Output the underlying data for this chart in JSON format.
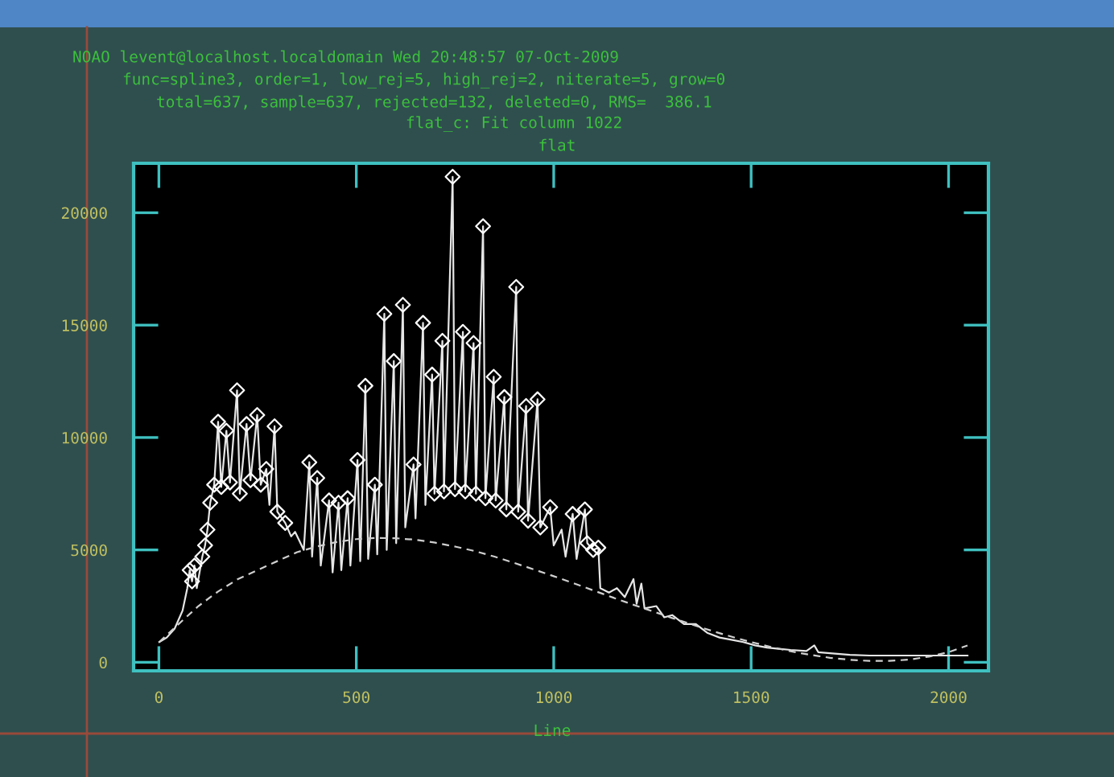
{
  "chart_data": {
    "type": "line",
    "title": "flat",
    "xlabel": "Line",
    "annotations": [
      "NOAO levent@localhost.localdomain Wed 20:48:57 07-Oct-2009",
      "func=spline3, order=1, low_rej=5, high_rej=2, niterate=5, grow=0",
      "total=637, sample=637, rejected=132, deleted=0, RMS=  386.1",
      "flat_c: Fit column 1022"
    ],
    "xlim": [
      -64,
      2101
    ],
    "ylim": [
      -380,
      22200
    ],
    "xticks": [
      0,
      500,
      1000,
      1500,
      2000
    ],
    "yticks": [
      0,
      5000,
      10000,
      15000,
      20000
    ],
    "series": [
      {
        "color": "#e6e6e6",
        "line_style": "solid",
        "marker": "none",
        "x": [
          1,
          20,
          40,
          60,
          72,
          78,
          84,
          90,
          96,
          110,
          117,
          123,
          130,
          140,
          150,
          158,
          171,
          180,
          198,
          205,
          222,
          232,
          249,
          258,
          272,
          280,
          293,
          300,
          320,
          335,
          345,
          367,
          381,
          388,
          401,
          410,
          431,
          440,
          455,
          462,
          478,
          485,
          503,
          510,
          523,
          530,
          547,
          553,
          571,
          577,
          595,
          601,
          618,
          624,
          645,
          650,
          669,
          675,
          692,
          698,
          718,
          722,
          744,
          750,
          770,
          776,
          797,
          803,
          821,
          827,
          848,
          853,
          875,
          880,
          905,
          910,
          930,
          935,
          959,
          966,
          991,
          1000,
          1020,
          1030,
          1048,
          1058,
          1079,
          1085,
          1100,
          1113,
          1118,
          1140,
          1160,
          1180,
          1202,
          1210,
          1222,
          1230,
          1260,
          1280,
          1300,
          1330,
          1360,
          1390,
          1420,
          1450,
          1480,
          1510,
          1540,
          1570,
          1600,
          1640,
          1660,
          1670,
          1700,
          1750,
          1800,
          1850,
          1900,
          1950,
          2000,
          2048
        ],
        "values": [
          900,
          1100,
          1500,
          2300,
          3300,
          4100,
          3600,
          4300,
          3300,
          4700,
          5200,
          5900,
          7100,
          7900,
          10700,
          7800,
          10300,
          8000,
          12100,
          7500,
          10600,
          8100,
          11000,
          7900,
          8600,
          7000,
          10500,
          6700,
          6200,
          5600,
          5800,
          5000,
          8900,
          4700,
          8200,
          4300,
          7200,
          4000,
          7100,
          4100,
          7300,
          4300,
          9000,
          4500,
          12300,
          4600,
          7900,
          4800,
          15500,
          5000,
          13400,
          5300,
          15900,
          6000,
          8800,
          6400,
          15100,
          7000,
          12800,
          7500,
          14300,
          7600,
          21600,
          7700,
          14700,
          7600,
          14200,
          7500,
          19400,
          7300,
          12700,
          7200,
          11800,
          6800,
          16700,
          6700,
          11400,
          6300,
          11700,
          6000,
          6900,
          5200,
          5900,
          4700,
          6600,
          4600,
          6800,
          5300,
          5000,
          5100,
          3300,
          3100,
          3300,
          2900,
          3700,
          2600,
          3500,
          2400,
          2500,
          2000,
          2100,
          1700,
          1700,
          1300,
          1100,
          1000,
          900,
          750,
          650,
          600,
          550,
          500,
          750,
          450,
          400,
          330,
          300,
          300,
          300,
          300,
          300,
          300
        ]
      },
      {
        "color": "#cfcfcf",
        "line_style": "dashed",
        "marker": "none",
        "x": [
          1,
          50,
          100,
          150,
          200,
          250,
          300,
          350,
          400,
          450,
          500,
          550,
          600,
          650,
          700,
          750,
          800,
          850,
          900,
          950,
          1000,
          1050,
          1100,
          1150,
          1200,
          1250,
          1300,
          1350,
          1400,
          1450,
          1500,
          1550,
          1600,
          1650,
          1700,
          1750,
          1800,
          1850,
          1900,
          1950,
          2000,
          2048
        ],
        "values": [
          900,
          1700,
          2500,
          3150,
          3700,
          4100,
          4500,
          4900,
          5150,
          5350,
          5480,
          5530,
          5520,
          5450,
          5320,
          5150,
          4950,
          4700,
          4420,
          4130,
          3830,
          3520,
          3200,
          2880,
          2570,
          2270,
          1970,
          1680,
          1400,
          1140,
          900,
          680,
          490,
          330,
          200,
          110,
          60,
          60,
          120,
          250,
          450,
          750
        ]
      },
      {
        "type": "scatter",
        "color": "#ffffff",
        "marker": "diamond",
        "x": [
          78,
          84,
          90,
          110,
          117,
          123,
          130,
          140,
          150,
          158,
          171,
          180,
          198,
          205,
          222,
          232,
          249,
          258,
          272,
          293,
          300,
          320,
          381,
          401,
          431,
          455,
          478,
          503,
          523,
          547,
          571,
          595,
          618,
          645,
          669,
          692,
          698,
          718,
          722,
          744,
          750,
          770,
          776,
          797,
          803,
          821,
          827,
          848,
          853,
          875,
          880,
          905,
          910,
          930,
          935,
          959,
          966,
          991,
          1048,
          1079,
          1085,
          1100,
          1113
        ],
        "values": [
          4100,
          3600,
          4300,
          4700,
          5200,
          5900,
          7100,
          7900,
          10700,
          7800,
          10300,
          8000,
          12100,
          7500,
          10600,
          8100,
          11000,
          7900,
          8600,
          10500,
          6700,
          6200,
          8900,
          8200,
          7200,
          7100,
          7300,
          9000,
          12300,
          7900,
          15500,
          13400,
          15900,
          8800,
          15100,
          12800,
          7500,
          14300,
          7600,
          21600,
          7700,
          14700,
          7600,
          14200,
          7500,
          19400,
          7300,
          12700,
          7200,
          11800,
          6800,
          16700,
          6700,
          11400,
          6300,
          11700,
          6000,
          6900,
          6600,
          6800,
          5300,
          5000,
          5100
        ]
      }
    ]
  }
}
